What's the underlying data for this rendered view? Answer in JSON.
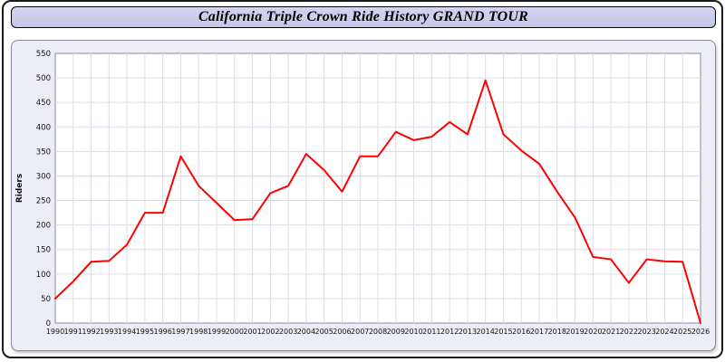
{
  "page": {
    "title": "California Triple Crown Ride History GRAND TOUR"
  },
  "chart_data": {
    "type": "line",
    "title": "California Triple Crown Ride History GRAND TOUR",
    "xlabel": "",
    "ylabel": "Riders",
    "ylim": [
      0,
      550
    ],
    "ytick_step": 50,
    "grid": true,
    "legend": "none",
    "line_color": "#ff0000",
    "x": [
      "1990",
      "1991",
      "1992",
      "1993",
      "1994",
      "1995",
      "1996",
      "1997",
      "1998",
      "1999",
      "2000",
      "2001",
      "2002",
      "2003",
      "2004",
      "2005",
      "2006",
      "2007",
      "2008",
      "2009",
      "2010",
      "2011",
      "2012",
      "2013",
      "2014",
      "2015",
      "2016",
      "2017",
      "2018",
      "2019",
      "2020",
      "2021",
      "2022",
      "2023",
      "2024",
      "2025",
      "2026"
    ],
    "series": [
      {
        "name": "Riders",
        "values": [
          50,
          85,
          125,
          127,
          160,
          225,
          225,
          340,
          280,
          245,
          210,
          212,
          265,
          280,
          345,
          312,
          268,
          340,
          340,
          390,
          373,
          380,
          410,
          385,
          495,
          385,
          352,
          325,
          268,
          215,
          135,
          130,
          82,
          130,
          126,
          125,
          0
        ]
      }
    ]
  }
}
